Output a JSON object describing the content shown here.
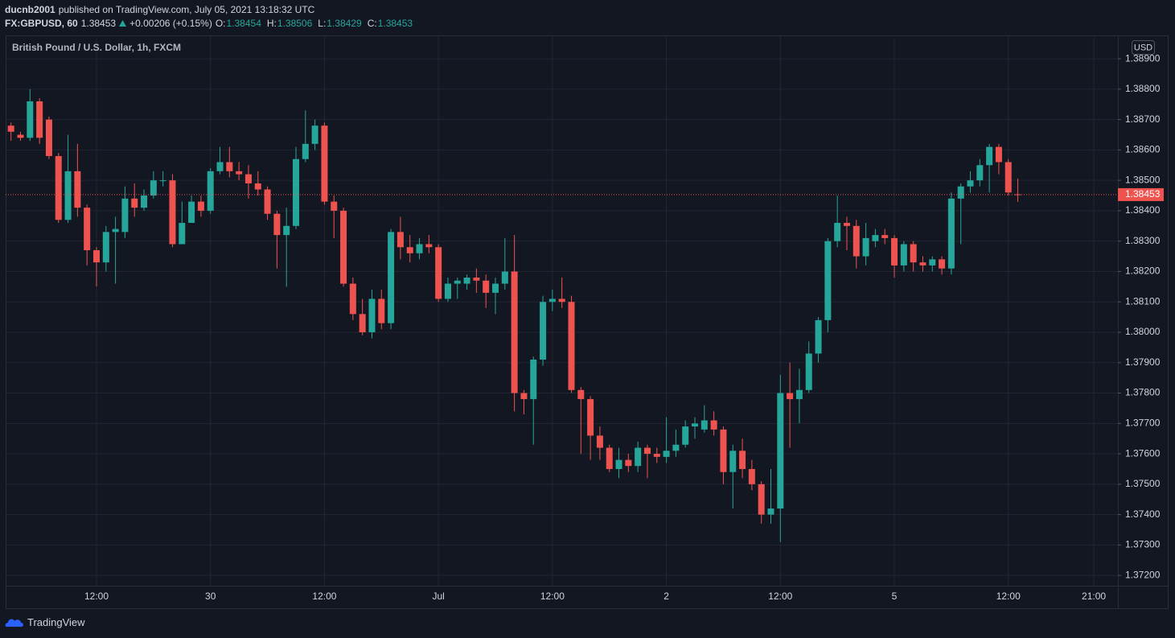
{
  "header": {
    "user": "ducnb2001",
    "published": "published on TradingView.com, July 05, 2021 13:18:32 UTC",
    "symbol": "FX:GBPUSD, 60",
    "last": "1.38453",
    "change": "+0.00206 (+0.15%)",
    "ohlc": [
      {
        "label": "O:",
        "value": "1.38454"
      },
      {
        "label": "H:",
        "value": "1.38506"
      },
      {
        "label": "L:",
        "value": "1.38429"
      },
      {
        "label": "C:",
        "value": "1.38453"
      }
    ]
  },
  "chart_data": {
    "type": "candlestick",
    "title": "British Pound / U.S. Dollar, 1h, FXCM",
    "currency": "USD",
    "up_color": "#26a69a",
    "down_color": "#ef5350",
    "grid": true,
    "categories": [
      null,
      null,
      null,
      null,
      null,
      null,
      null,
      null,
      null,
      "12:00",
      null,
      null,
      null,
      null,
      null,
      null,
      null,
      null,
      null,
      null,
      null,
      "30",
      null,
      null,
      null,
      null,
      null,
      null,
      null,
      null,
      null,
      null,
      null,
      "12:00",
      null,
      null,
      null,
      null,
      null,
      null,
      null,
      null,
      null,
      null,
      null,
      "Jul",
      null,
      null,
      null,
      null,
      null,
      null,
      null,
      null,
      null,
      null,
      null,
      "12:00",
      null,
      null,
      null,
      null,
      null,
      null,
      null,
      null,
      null,
      null,
      null,
      "2",
      null,
      null,
      null,
      null,
      null,
      null,
      null,
      null,
      null,
      null,
      null,
      "12:00",
      null,
      null,
      null,
      null,
      null,
      null,
      null,
      null,
      null,
      null,
      null,
      "5",
      null,
      null,
      null,
      null,
      null,
      null,
      null,
      null,
      null,
      null,
      null,
      "12:00",
      null,
      null,
      null,
      null,
      null,
      null,
      null,
      null,
      "21:00"
    ],
    "open": [
      1.3868,
      1.3865,
      1.3864,
      1.3876,
      1.387,
      1.3858,
      1.3837,
      1.3853,
      1.3841,
      1.3827,
      1.3823,
      1.3833,
      1.3833,
      1.3844,
      1.3841,
      1.3845,
      1.385,
      1.385,
      1.3829,
      1.3836,
      1.3843,
      1.384,
      1.3853,
      1.3856,
      1.3853,
      1.3852,
      1.3849,
      1.3847,
      1.3839,
      1.3832,
      1.3835,
      1.3857,
      1.3862,
      1.3868,
      1.3843,
      1.384,
      1.3816,
      1.3806,
      1.38,
      1.3811,
      1.3803,
      1.3833,
      1.3828,
      1.3826,
      1.3829,
      1.3828,
      1.3811,
      1.3816,
      1.3816,
      1.3818,
      1.3817,
      1.3813,
      1.3816,
      1.382,
      1.378,
      1.3778,
      1.3791,
      1.381,
      1.3811,
      1.381,
      1.3781,
      1.3778,
      1.3766,
      1.3762,
      1.3755,
      1.3758,
      1.3756,
      1.3762,
      1.376,
      1.3759,
      1.3761,
      1.3763,
      1.3769,
      1.3768,
      1.3771,
      1.3768,
      1.3754,
      1.3761,
      1.3755,
      1.375,
      1.374,
      1.3742,
      1.378,
      1.3778,
      1.3781,
      1.3793,
      1.3804,
      1.383,
      1.3836,
      1.3835,
      1.3825,
      1.383,
      1.3832,
      1.3831,
      1.3822,
      1.3829,
      1.3823,
      1.3822,
      1.3824,
      1.3821,
      1.3844,
      1.3848,
      1.385,
      1.3855,
      1.3861,
      1.3856,
      1.38454,
      null,
      null,
      null,
      null,
      null,
      null,
      null,
      null
    ],
    "high": [
      1.3869,
      1.3866,
      1.388,
      1.3877,
      1.3871,
      1.3859,
      1.3865,
      1.3862,
      1.3842,
      1.3828,
      1.3835,
      1.3838,
      1.3848,
      1.3849,
      1.3847,
      1.3853,
      1.3853,
      1.3852,
      1.3843,
      1.3845,
      1.3845,
      1.3854,
      1.3861,
      1.3861,
      1.3856,
      1.3855,
      1.3853,
      1.3848,
      1.384,
      1.3841,
      1.3861,
      1.3873,
      1.387,
      1.3869,
      1.3845,
      1.3841,
      1.3818,
      1.3811,
      1.3814,
      1.3814,
      1.3834,
      1.3838,
      1.3832,
      1.3831,
      1.3832,
      1.3829,
      1.3818,
      1.3818,
      1.3819,
      1.3821,
      1.3819,
      1.3818,
      1.3831,
      1.3832,
      1.3781,
      1.3792,
      1.3812,
      1.3814,
      1.3818,
      1.3812,
      1.3782,
      1.3779,
      1.3769,
      1.3763,
      1.3762,
      1.376,
      1.3764,
      1.3763,
      1.3762,
      1.3772,
      1.3768,
      1.3771,
      1.3772,
      1.3776,
      1.3774,
      1.3769,
      1.3763,
      1.3765,
      1.3758,
      1.3751,
      1.3755,
      1.3786,
      1.379,
      1.3788,
      1.3797,
      1.3805,
      1.3831,
      1.3845,
      1.3838,
      1.3837,
      1.3836,
      1.3834,
      1.3834,
      1.3832,
      1.383,
      1.383,
      1.3825,
      1.3825,
      1.3825,
      1.3846,
      1.3849,
      1.3853,
      1.3857,
      1.3862,
      1.3862,
      1.3857,
      1.38506,
      null,
      null,
      null,
      null,
      null,
      null,
      null,
      null
    ],
    "low": [
      1.3863,
      1.3863,
      1.3863,
      1.3862,
      1.3857,
      1.3836,
      1.3836,
      1.3838,
      1.3822,
      1.3815,
      1.382,
      1.3816,
      1.3831,
      1.3838,
      1.384,
      1.3844,
      1.3848,
      1.3828,
      1.3829,
      1.3836,
      1.3838,
      1.3839,
      1.3852,
      1.3851,
      1.385,
      1.3844,
      1.3845,
      1.3837,
      1.3821,
      1.3815,
      1.3834,
      1.3856,
      1.386,
      1.3842,
      1.3831,
      1.3815,
      1.3804,
      1.3799,
      1.3798,
      1.3801,
      1.3801,
      1.3824,
      1.3823,
      1.3824,
      1.3826,
      1.381,
      1.381,
      1.3811,
      1.3814,
      1.3813,
      1.3808,
      1.3806,
      1.3814,
      1.3774,
      1.3773,
      1.3763,
      1.3789,
      1.3807,
      1.3808,
      1.378,
      1.376,
      1.3758,
      1.3758,
      1.3754,
      1.3752,
      1.3754,
      1.3754,
      1.3752,
      1.3757,
      1.3757,
      1.3759,
      1.3762,
      1.3765,
      1.3767,
      1.3766,
      1.375,
      1.3742,
      1.3752,
      1.3748,
      1.3737,
      1.3737,
      1.3731,
      1.3762,
      1.377,
      1.378,
      1.379,
      1.38,
      1.3828,
      1.3827,
      1.3821,
      1.3822,
      1.3828,
      1.3829,
      1.3818,
      1.382,
      1.382,
      1.382,
      1.382,
      1.3819,
      1.3819,
      1.3829,
      1.3846,
      1.3848,
      1.3846,
      1.3852,
      1.3845,
      1.38429,
      null,
      null,
      null,
      null,
      null,
      null,
      null,
      null
    ],
    "close": [
      1.3866,
      1.3864,
      1.3876,
      1.3864,
      1.3858,
      1.3837,
      1.3853,
      1.3841,
      1.3827,
      1.3823,
      1.3833,
      1.3834,
      1.3844,
      1.3841,
      1.3845,
      1.385,
      1.385,
      1.3829,
      1.3836,
      1.3843,
      1.384,
      1.3853,
      1.3856,
      1.3853,
      1.3852,
      1.3849,
      1.3847,
      1.3839,
      1.3832,
      1.3835,
      1.3857,
      1.3862,
      1.3868,
      1.3843,
      1.384,
      1.3816,
      1.3806,
      1.38,
      1.3811,
      1.3803,
      1.3833,
      1.3828,
      1.3826,
      1.3829,
      1.3828,
      1.3811,
      1.3816,
      1.3817,
      1.3818,
      1.3817,
      1.3813,
      1.3816,
      1.382,
      1.378,
      1.3778,
      1.3791,
      1.381,
      1.3811,
      1.381,
      1.3781,
      1.3778,
      1.3766,
      1.3762,
      1.3755,
      1.3758,
      1.3756,
      1.3762,
      1.376,
      1.3759,
      1.3761,
      1.3763,
      1.3769,
      1.377,
      1.3771,
      1.3768,
      1.3754,
      1.3761,
      1.3755,
      1.375,
      1.374,
      1.3742,
      1.378,
      1.3778,
      1.3781,
      1.3793,
      1.3804,
      1.383,
      1.3836,
      1.3835,
      1.3825,
      1.3831,
      1.3832,
      1.3831,
      1.3822,
      1.3829,
      1.3823,
      1.3822,
      1.3824,
      1.3821,
      1.3844,
      1.3848,
      1.385,
      1.3855,
      1.3861,
      1.3856,
      1.3846,
      1.38453,
      null,
      null,
      null,
      null,
      null,
      null,
      null,
      null
    ],
    "ylim": [
      1.37166,
      1.38977
    ],
    "yticks": [
      {
        "value": 1.389,
        "label": "1.38900"
      },
      {
        "value": 1.388,
        "label": "1.38800"
      },
      {
        "value": 1.387,
        "label": "1.38700"
      },
      {
        "value": 1.386,
        "label": "1.38600"
      },
      {
        "value": 1.385,
        "label": "1.38500"
      },
      {
        "value": 1.384,
        "label": "1.38400"
      },
      {
        "value": 1.383,
        "label": "1.38300"
      },
      {
        "value": 1.382,
        "label": "1.38200"
      },
      {
        "value": 1.381,
        "label": "1.38100"
      },
      {
        "value": 1.38,
        "label": "1.38000"
      },
      {
        "value": 1.379,
        "label": "1.37900"
      },
      {
        "value": 1.378,
        "label": "1.37800"
      },
      {
        "value": 1.377,
        "label": "1.37700"
      },
      {
        "value": 1.376,
        "label": "1.37600"
      },
      {
        "value": 1.375,
        "label": "1.37500"
      },
      {
        "value": 1.374,
        "label": "1.37400"
      },
      {
        "value": 1.373,
        "label": "1.37300"
      },
      {
        "value": 1.372,
        "label": "1.37200"
      }
    ],
    "last_price": {
      "value": 1.38453,
      "label": "1.38453"
    }
  },
  "footer": {
    "brand": "TradingView"
  }
}
